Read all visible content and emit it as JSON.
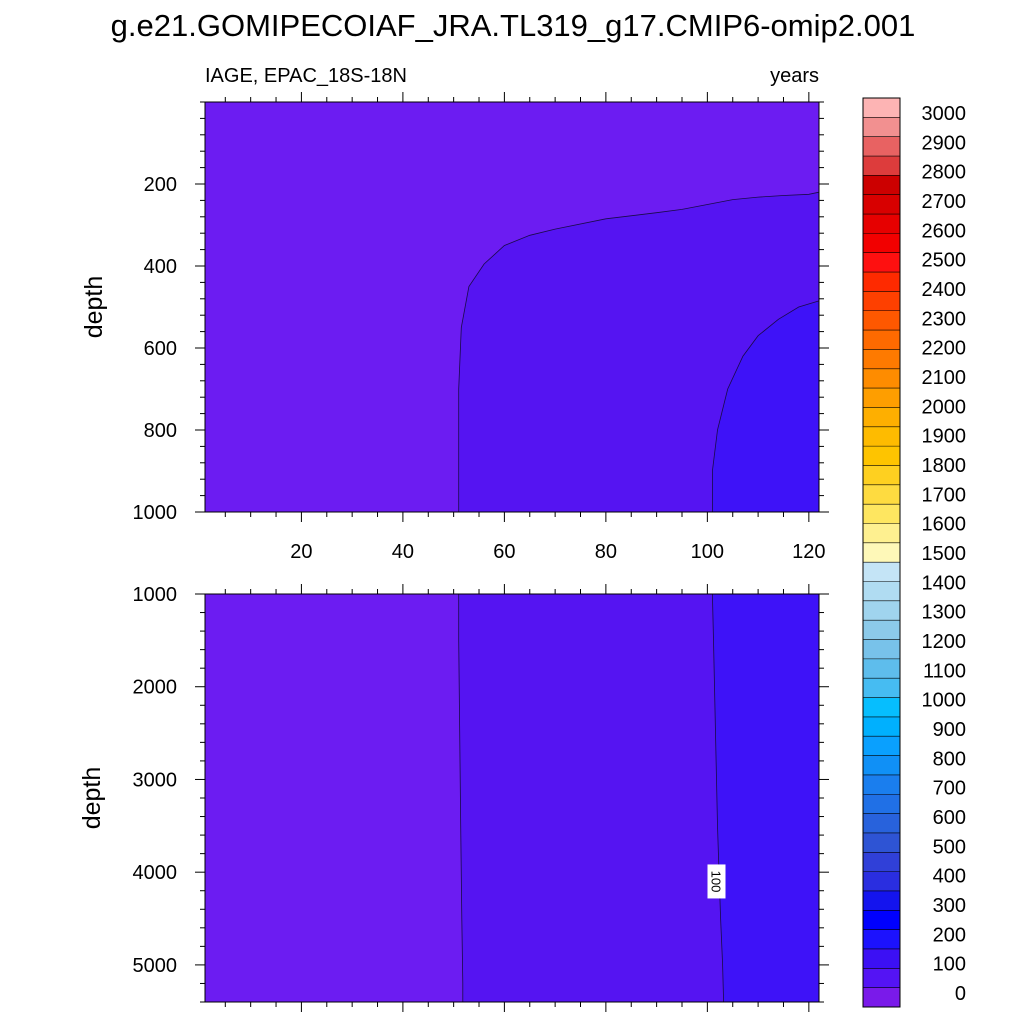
{
  "figure_title": "g.e21.GOMIPECOIAF_JRA.TL319_g17.CMIP6-omip2.001",
  "chart_data": [
    {
      "type": "contour",
      "panel": "upper",
      "left_string": "IAGE, EPAC_18S-18N",
      "right_string": "years",
      "xlabel": "",
      "ylabel": "depth",
      "xlim": [
        1,
        122
      ],
      "ylim": [
        0,
        1000
      ],
      "y_inverted": true,
      "x_ticks": [
        20,
        40,
        60,
        80,
        100,
        120
      ],
      "y_ticks": [
        200,
        400,
        600,
        800,
        1000
      ],
      "contour_levels": [
        50,
        100
      ],
      "contour_lines": [
        {
          "level": 50,
          "x": [
            51,
            51,
            51.5,
            53,
            56,
            60,
            65,
            70,
            80,
            90,
            95,
            100,
            105,
            110,
            115,
            120,
            122
          ],
          "y": [
            1000,
            700,
            550,
            450,
            395,
            350,
            325,
            310,
            285,
            270,
            262,
            250,
            238,
            232,
            228,
            225,
            220
          ]
        },
        {
          "level": 100,
          "x": [
            101,
            101,
            102,
            104,
            107,
            110,
            114,
            118,
            122
          ],
          "y": [
            1000,
            900,
            800,
            700,
            620,
            570,
            530,
            500,
            485
          ]
        }
      ]
    },
    {
      "type": "contour",
      "panel": "lower",
      "left_string": "",
      "right_string": "",
      "xlabel": "",
      "ylabel": "depth",
      "xlim": [
        1,
        122
      ],
      "ylim": [
        1000,
        5400
      ],
      "y_inverted": true,
      "x_ticks": [
        20,
        40,
        60,
        80,
        100,
        120
      ],
      "y_ticks": [
        1000,
        2000,
        3000,
        4000,
        5000
      ],
      "contour_levels": [
        50,
        100
      ],
      "contour_lines": [
        {
          "level": 50,
          "x": [
            51,
            51,
            51.2,
            51.4,
            51.6,
            51.8,
            51.8
          ],
          "y": [
            1000,
            1500,
            2500,
            3500,
            4500,
            5200,
            5400
          ]
        },
        {
          "level": 100,
          "x": [
            101,
            101.2,
            101.6,
            102,
            102.3,
            102.6,
            103,
            103.2
          ],
          "y": [
            1000,
            1500,
            2500,
            3500,
            4000,
            4500,
            5000,
            5400
          ]
        }
      ],
      "annotations": [
        {
          "text": "100",
          "x": 101.8,
          "y": 4100
        }
      ]
    }
  ],
  "colorbar": {
    "labels": [
      "3000",
      "2900",
      "2800",
      "2700",
      "2600",
      "2500",
      "2400",
      "2300",
      "2200",
      "2100",
      "2000",
      "1900",
      "1800",
      "1700",
      "1600",
      "1500",
      "1400",
      "1300",
      "1200",
      "1100",
      "1000",
      "900",
      "800",
      "700",
      "600",
      "500",
      "400",
      "300",
      "200",
      "100",
      "0"
    ],
    "colors": [
      "#fdb4b4",
      "#f29090",
      "#e86262",
      "#dd3c3c",
      "#cc0000",
      "#d80000",
      "#e60000",
      "#f20000",
      "#fe1010",
      "#fe2a00",
      "#fe4000",
      "#fe5800",
      "#fe6a00",
      "#fe7a00",
      "#fe8c00",
      "#fe9e00",
      "#feaf00",
      "#febb00",
      "#fec400",
      "#fed020",
      "#fedb40",
      "#fee660",
      "#fef090",
      "#fef8b8",
      "#c4e4f6",
      "#b0dcf2",
      "#a0d4ee",
      "#8ccaea",
      "#78c2ea",
      "#5ebdec",
      "#46bcf2",
      "#06befe",
      "#00b0fe",
      "#0aa0fe",
      "#1090f6",
      "#1a7eee",
      "#2070e6",
      "#2862dc",
      "#2e54d4",
      "#3040d8",
      "#2a2ee0",
      "#1414ee",
      "#0000fe",
      "#1c12fe",
      "#3c10f4",
      "#5414f4",
      "#7a1aea"
    ]
  },
  "field_colors": {
    "lt50": "#6c1cf2",
    "mid": "#5514f2",
    "gt100": "#3e12f8"
  }
}
